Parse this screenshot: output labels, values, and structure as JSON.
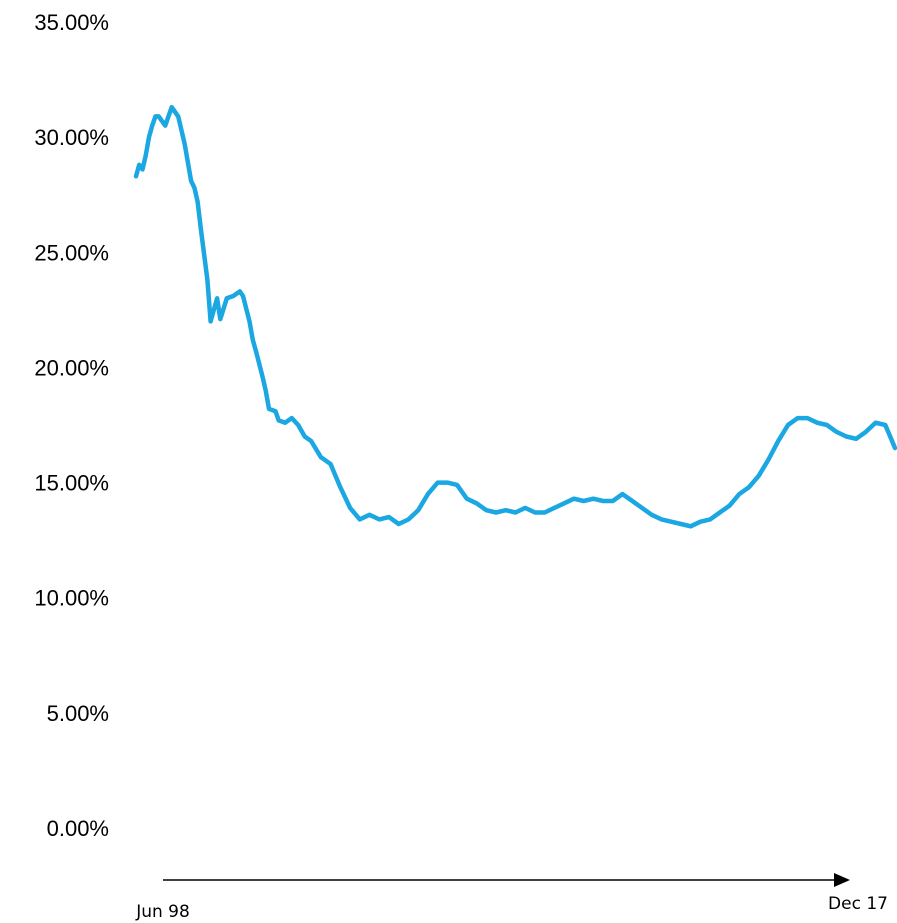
{
  "chart_data": {
    "type": "line",
    "title": "",
    "xlabel": "",
    "ylabel": "",
    "ylim": [
      0,
      0.35
    ],
    "y_ticks": [
      "35.00%",
      "30.00%",
      "25.00%",
      "20.00%",
      "15.00%",
      "10.00%",
      "5.00%",
      "0.00%"
    ],
    "x_range": [
      "1998-06",
      "2017-12"
    ],
    "x_tick_labels": [
      "Jun 98",
      "Dec 17"
    ],
    "grid": false,
    "legend": "none",
    "colors": {
      "line": "#1aa7e2",
      "axis": "#000000"
    },
    "series": [
      {
        "x": [
          "1998-06",
          "1998-07",
          "1998-08",
          "1998-09",
          "1998-10",
          "1998-11",
          "1998-12",
          "1999-01",
          "1999-03",
          "1999-05",
          "1999-07",
          "1999-09",
          "1999-11",
          "1999-12",
          "2000-01",
          "2000-02",
          "2000-04",
          "2000-05",
          "2000-07",
          "2000-08",
          "2000-10",
          "2000-12",
          "2001-02",
          "2001-03",
          "2001-05",
          "2001-06",
          "2001-07",
          "2001-09",
          "2001-10",
          "2001-11",
          "2002-01",
          "2002-02",
          "2002-04",
          "2002-06",
          "2002-08",
          "2002-10",
          "2002-12",
          "2003-03",
          "2003-06",
          "2003-09",
          "2003-12",
          "2004-03",
          "2004-06",
          "2004-09",
          "2004-12",
          "2005-03",
          "2005-06",
          "2005-09",
          "2005-12",
          "2006-03",
          "2006-06",
          "2006-09",
          "2006-12",
          "2007-03",
          "2007-06",
          "2007-09",
          "2007-12",
          "2008-03",
          "2008-06",
          "2008-09",
          "2008-12",
          "2009-03",
          "2009-06",
          "2009-09",
          "2009-12",
          "2010-03",
          "2010-06",
          "2010-09",
          "2010-12",
          "2011-03",
          "2011-06",
          "2011-09",
          "2011-12",
          "2012-03",
          "2012-06",
          "2012-09",
          "2012-12",
          "2013-03",
          "2013-06",
          "2013-09",
          "2013-12",
          "2014-03",
          "2014-06",
          "2014-09",
          "2014-12",
          "2015-03",
          "2015-06",
          "2015-09",
          "2015-12",
          "2016-03",
          "2016-06",
          "2016-09",
          "2016-12",
          "2017-03",
          "2017-06",
          "2017-09",
          "2017-12"
        ],
        "values": [
          0.283,
          0.288,
          0.286,
          0.292,
          0.3,
          0.305,
          0.309,
          0.309,
          0.305,
          0.313,
          0.309,
          0.297,
          0.281,
          0.278,
          0.272,
          0.26,
          0.238,
          0.22,
          0.23,
          0.221,
          0.23,
          0.231,
          0.233,
          0.231,
          0.22,
          0.212,
          0.207,
          0.196,
          0.19,
          0.182,
          0.181,
          0.177,
          0.176,
          0.178,
          0.175,
          0.17,
          0.168,
          0.161,
          0.158,
          0.148,
          0.139,
          0.134,
          0.136,
          0.134,
          0.135,
          0.132,
          0.134,
          0.138,
          0.145,
          0.15,
          0.15,
          0.149,
          0.143,
          0.141,
          0.138,
          0.137,
          0.138,
          0.137,
          0.139,
          0.137,
          0.137,
          0.139,
          0.141,
          0.143,
          0.142,
          0.143,
          0.142,
          0.142,
          0.145,
          0.142,
          0.139,
          0.136,
          0.134,
          0.133,
          0.132,
          0.131,
          0.133,
          0.134,
          0.137,
          0.14,
          0.145,
          0.148,
          0.153,
          0.16,
          0.168,
          0.175,
          0.178,
          0.178,
          0.176,
          0.175,
          0.172,
          0.17,
          0.169,
          0.172,
          0.176,
          0.175,
          0.165
        ]
      }
    ]
  }
}
